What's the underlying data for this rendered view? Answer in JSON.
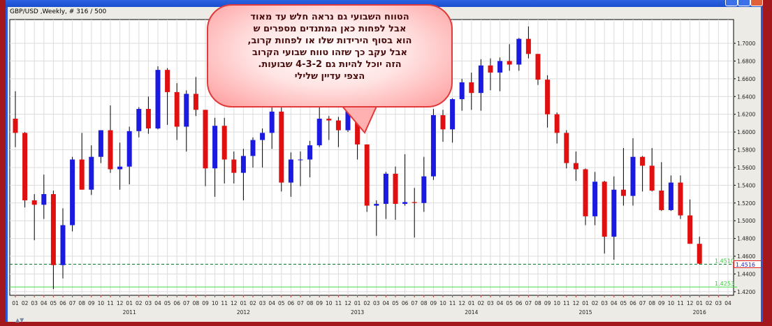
{
  "window": {
    "chart_label": "GBP/USD ,Weekly, # 316 / 500",
    "scroll_arrows_label": "▲▼"
  },
  "annotation": {
    "lines": [
      "הטווח השבועי גם נראה חלש עד מאוד",
      "אבל לפחות כאן  המתנדים מספרים  ש",
      "הוא בסוף הירידות שלו  או לפחות קרוב,",
      "אבל עקב כך שזהו טווח שבועי  הקרוב",
      "הזה יוכל להיות  גם  4-3-2 שבועות.",
      "הצפי עדיין  שלילי"
    ]
  },
  "colors": {
    "up_candle": "#1a1ae0",
    "down_candle": "#e01010",
    "wick": "#000000",
    "support_dashed": "#0a7a2a",
    "support_solid": "#44dd44",
    "label_green": "#33cc33",
    "grid": "#dcdcdc",
    "frame": "#a3181d"
  },
  "chart_data": {
    "type": "candlestick",
    "symbol": "GBP/USD",
    "timeframe": "Weekly",
    "ylim": [
      1.415,
      1.72
    ],
    "grid": true,
    "y_ticks": [
      "1.4200",
      "1.4400",
      "1.4600",
      "1.4800",
      "1.5000",
      "1.5200",
      "1.5400",
      "1.5600",
      "1.5800",
      "1.6000",
      "1.6200",
      "1.6400",
      "1.6600",
      "1.6800",
      "1.7000"
    ],
    "x_month_labels": [
      "01",
      "02",
      "03",
      "04",
      "05",
      "06",
      "07",
      "08",
      "09",
      "10",
      "11",
      "12",
      "01",
      "02",
      "03",
      "04",
      "05",
      "06",
      "07",
      "08",
      "09",
      "10",
      "11",
      "12",
      "01",
      "02",
      "03",
      "04",
      "05",
      "06",
      "07",
      "08",
      "09",
      "10",
      "11",
      "12",
      "01",
      "02",
      "03",
      "04",
      "05",
      "06",
      "07",
      "08",
      "09",
      "10",
      "11",
      "12",
      "01",
      "02",
      "03",
      "04",
      "05",
      "06",
      "07",
      "08",
      "09",
      "10",
      "11",
      "12",
      "01",
      "02",
      "03",
      "04",
      "05",
      "06",
      "07",
      "08",
      "09",
      "10",
      "11",
      "12",
      "01",
      "02",
      "03",
      "04"
    ],
    "x_year_labels": [
      {
        "label": "2011",
        "month_index": 12
      },
      {
        "label": "2012",
        "month_index": 24
      },
      {
        "label": "2013",
        "month_index": 36
      },
      {
        "label": "2014",
        "month_index": 48
      },
      {
        "label": "2015",
        "month_index": 60
      },
      {
        "label": "2016",
        "month_index": 72
      }
    ],
    "current_price": "1.4516",
    "horizontal_lines": [
      {
        "value": 1.451,
        "label": "1.4510",
        "style": "dashed"
      },
      {
        "value": 1.4253,
        "label": "1.4253",
        "style": "solid"
      }
    ],
    "ohlc": [
      [
        "2010-01",
        1.615,
        1.646,
        1.583,
        1.599
      ],
      [
        "2010-02",
        1.599,
        1.6,
        1.515,
        1.523
      ],
      [
        "2010-03",
        1.523,
        1.53,
        1.478,
        1.518
      ],
      [
        "2010-04",
        1.518,
        1.552,
        1.502,
        1.53
      ],
      [
        "2010-05",
        1.53,
        1.534,
        1.423,
        1.45
      ],
      [
        "2010-06",
        1.45,
        1.514,
        1.435,
        1.495
      ],
      [
        "2010-07",
        1.495,
        1.572,
        1.488,
        1.569
      ],
      [
        "2010-08",
        1.569,
        1.599,
        1.535,
        1.535
      ],
      [
        "2010-09",
        1.535,
        1.585,
        1.529,
        1.572
      ],
      [
        "2010-10",
        1.572,
        1.601,
        1.565,
        1.602
      ],
      [
        "2010-11",
        1.602,
        1.63,
        1.554,
        1.558
      ],
      [
        "2010-12",
        1.558,
        1.588,
        1.535,
        1.561
      ],
      [
        "2011-01",
        1.561,
        1.606,
        1.541,
        1.601
      ],
      [
        "2011-02",
        1.601,
        1.628,
        1.594,
        1.626
      ],
      [
        "2011-03",
        1.626,
        1.64,
        1.598,
        1.604
      ],
      [
        "2011-04",
        1.604,
        1.674,
        1.603,
        1.67
      ],
      [
        "2011-05",
        1.67,
        1.672,
        1.608,
        1.645
      ],
      [
        "2011-06",
        1.645,
        1.655,
        1.591,
        1.606
      ],
      [
        "2011-07",
        1.606,
        1.647,
        1.578,
        1.643
      ],
      [
        "2011-08",
        1.643,
        1.662,
        1.618,
        1.625
      ],
      [
        "2011-09",
        1.625,
        1.625,
        1.539,
        1.559
      ],
      [
        "2011-10",
        1.559,
        1.616,
        1.527,
        1.607
      ],
      [
        "2011-11",
        1.607,
        1.616,
        1.542,
        1.569
      ],
      [
        "2011-12",
        1.569,
        1.578,
        1.542,
        1.554
      ],
      [
        "2012-01",
        1.554,
        1.581,
        1.523,
        1.573
      ],
      [
        "2012-02",
        1.573,
        1.594,
        1.56,
        1.591
      ],
      [
        "2012-03",
        1.591,
        1.604,
        1.56,
        1.599
      ],
      [
        "2012-04",
        1.599,
        1.63,
        1.581,
        1.623
      ],
      [
        "2012-05",
        1.623,
        1.63,
        1.533,
        1.543
      ],
      [
        "2012-06",
        1.543,
        1.577,
        1.527,
        1.569
      ],
      [
        "2012-07",
        1.569,
        1.578,
        1.539,
        1.569
      ],
      [
        "2012-08",
        1.569,
        1.59,
        1.549,
        1.585
      ],
      [
        "2012-09",
        1.585,
        1.631,
        1.583,
        1.615
      ],
      [
        "2012-10",
        1.615,
        1.618,
        1.591,
        1.613
      ],
      [
        "2012-11",
        1.613,
        1.617,
        1.583,
        1.602
      ],
      [
        "2012-12",
        1.602,
        1.631,
        1.6,
        1.625
      ],
      [
        "2013-01",
        1.625,
        1.638,
        1.569,
        1.586
      ],
      [
        "2013-02",
        1.586,
        1.586,
        1.51,
        1.517
      ],
      [
        "2013-03",
        1.517,
        1.523,
        1.483,
        1.519
      ],
      [
        "2013-04",
        1.519,
        1.555,
        1.502,
        1.553
      ],
      [
        "2013-05",
        1.553,
        1.561,
        1.501,
        1.519
      ],
      [
        "2013-06",
        1.519,
        1.575,
        1.517,
        1.521
      ],
      [
        "2013-07",
        1.521,
        1.537,
        1.481,
        1.52
      ],
      [
        "2013-08",
        1.52,
        1.572,
        1.51,
        1.55
      ],
      [
        "2013-09",
        1.55,
        1.626,
        1.546,
        1.619
      ],
      [
        "2013-10",
        1.619,
        1.625,
        1.589,
        1.603
      ],
      [
        "2013-11",
        1.603,
        1.638,
        1.588,
        1.637
      ],
      [
        "2013-12",
        1.637,
        1.66,
        1.624,
        1.656
      ],
      [
        "2014-01",
        1.656,
        1.667,
        1.625,
        1.644
      ],
      [
        "2014-02",
        1.644,
        1.682,
        1.624,
        1.675
      ],
      [
        "2014-03",
        1.675,
        1.683,
        1.647,
        1.667
      ],
      [
        "2014-04",
        1.667,
        1.684,
        1.646,
        1.68
      ],
      [
        "2014-05",
        1.68,
        1.699,
        1.669,
        1.676
      ],
      [
        "2014-06",
        1.676,
        1.706,
        1.669,
        1.705
      ],
      [
        "2014-07",
        1.705,
        1.719,
        1.683,
        1.688
      ],
      [
        "2014-08",
        1.688,
        1.688,
        1.653,
        1.659
      ],
      [
        "2014-09",
        1.659,
        1.664,
        1.605,
        1.62
      ],
      [
        "2014-10",
        1.62,
        1.622,
        1.587,
        1.599
      ],
      [
        "2014-11",
        1.599,
        1.602,
        1.559,
        1.565
      ],
      [
        "2014-12",
        1.565,
        1.578,
        1.545,
        1.558
      ],
      [
        "2015-01",
        1.558,
        1.559,
        1.495,
        1.505
      ],
      [
        "2015-02",
        1.505,
        1.555,
        1.495,
        1.544
      ],
      [
        "2015-03",
        1.544,
        1.545,
        1.463,
        1.482
      ],
      [
        "2015-04",
        1.482,
        1.55,
        1.456,
        1.535
      ],
      [
        "2015-05",
        1.535,
        1.582,
        1.517,
        1.528
      ],
      [
        "2015-06",
        1.528,
        1.593,
        1.517,
        1.572
      ],
      [
        "2015-07",
        1.572,
        1.573,
        1.533,
        1.562
      ],
      [
        "2015-08",
        1.562,
        1.582,
        1.533,
        1.534
      ],
      [
        "2015-09",
        1.534,
        1.566,
        1.511,
        1.512
      ],
      [
        "2015-10",
        1.512,
        1.551,
        1.511,
        1.543
      ],
      [
        "2015-11",
        1.543,
        1.551,
        1.502,
        1.506
      ],
      [
        "2015-12",
        1.506,
        1.524,
        1.474,
        1.474
      ],
      [
        "2016-01",
        1.474,
        1.482,
        1.451,
        1.4516
      ]
    ]
  }
}
